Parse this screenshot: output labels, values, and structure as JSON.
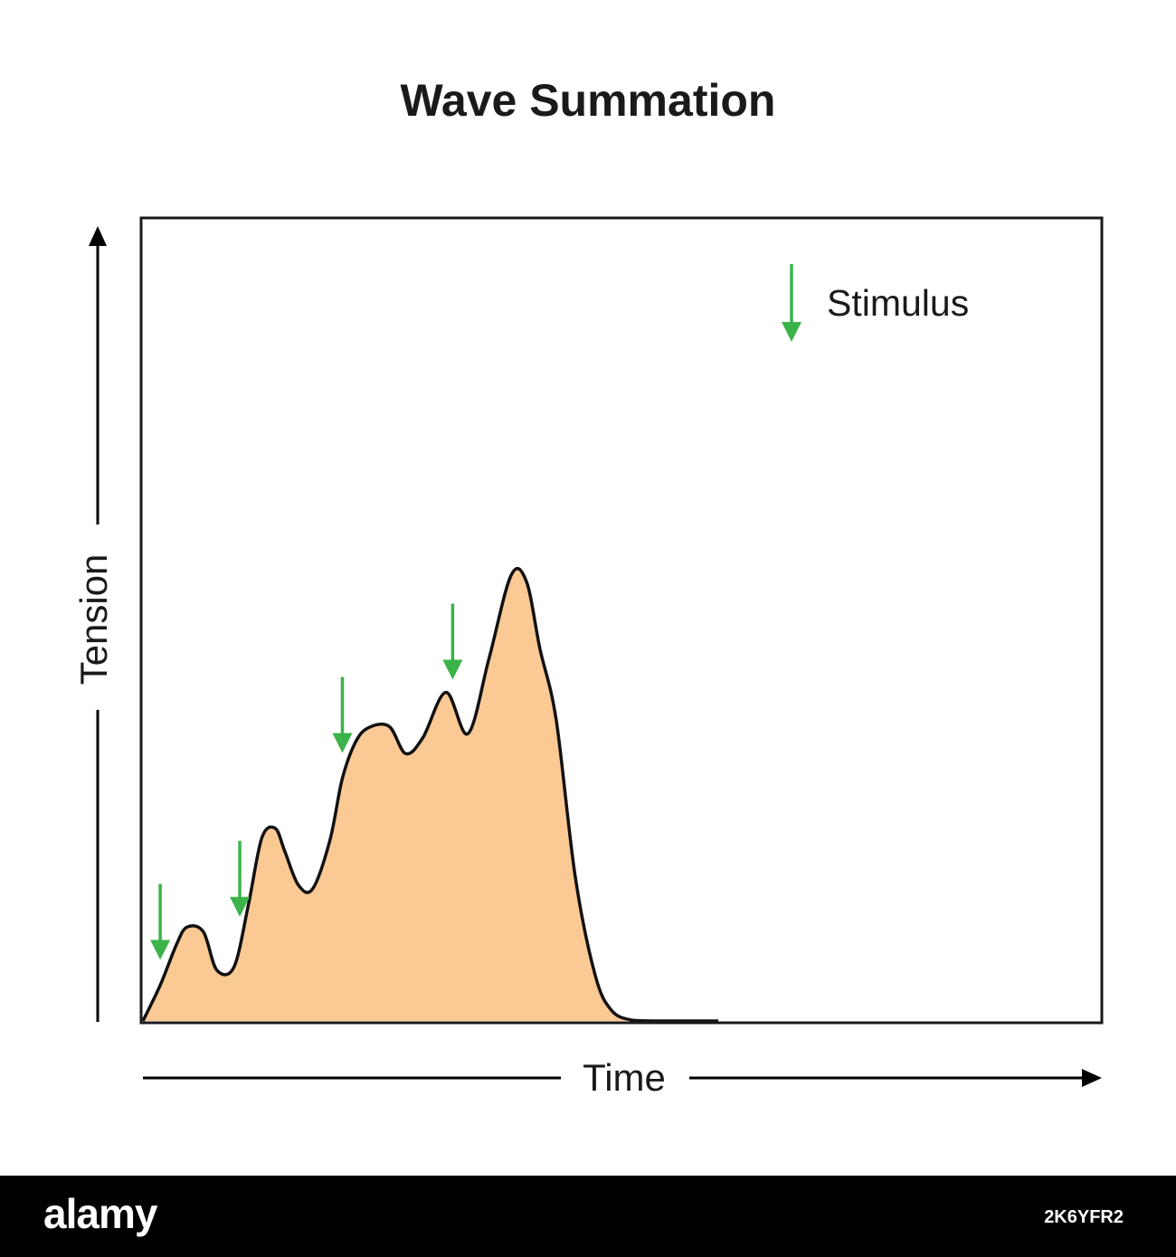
{
  "chart_data": {
    "type": "area",
    "title": "Wave Summation",
    "xlabel": "Time",
    "ylabel": "Tension",
    "xlim": [
      0,
      100
    ],
    "ylim": [
      0,
      100
    ],
    "grid": false,
    "legend": {
      "label": "Stimulus",
      "placement": "top-right",
      "marker": "down-arrow"
    },
    "series": [
      {
        "fill": "#fbc994",
        "x": [
          0,
          1.8,
          3.5,
          4.6,
          6.3,
          7.7,
          9.5,
          11.0,
          12.4,
          13.8,
          14.8,
          16.2,
          17.7,
          19.5,
          20.8,
          22.2,
          23.6,
          25.7,
          27.4,
          29.2,
          31.6,
          33.9,
          36.1,
          38.4,
          40.0,
          41.4,
          43.1,
          45.1,
          47.2,
          48.9,
          51.0,
          53.6,
          55.2,
          57.1,
          60.0,
          100
        ],
        "y": [
          0,
          4.5,
          9.6,
          11.8,
          11.2,
          6.4,
          6.8,
          14.6,
          23.0,
          24.2,
          21.3,
          17.1,
          16.6,
          22.7,
          30.5,
          35.1,
          36.9,
          37.0,
          33.6,
          35.6,
          41.3,
          36.1,
          45.6,
          56.0,
          55.2,
          46.8,
          37.8,
          18.0,
          5.6,
          1.3,
          0.1,
          0,
          0,
          0,
          0,
          0
        ]
      }
    ],
    "stimuli_x": [
      1.8,
      10.1,
      20.8,
      32.3
    ],
    "stimulus_color": "#3cb34a"
  },
  "watermark": {
    "brand": "alamy",
    "image_id": "2K6YFR2"
  }
}
